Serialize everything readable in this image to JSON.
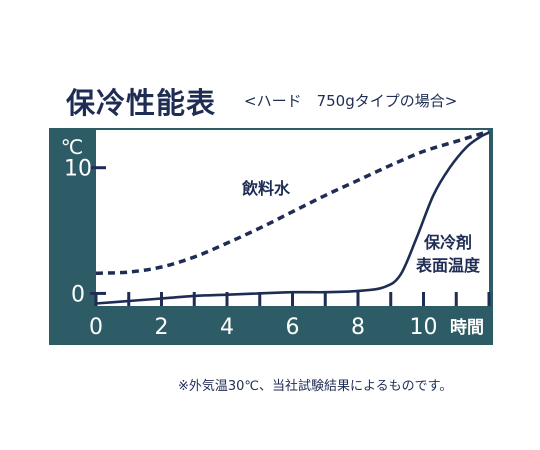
{
  "header": {
    "title": "保冷性能表",
    "subtitle": "<ハード　750gタイプの場合>"
  },
  "footnote": "※外気温30℃、当社試験結果によるものです。",
  "chart_data": {
    "type": "line",
    "ylabel": "℃",
    "xlabel": "時間",
    "x_ticks": [
      0,
      2,
      4,
      6,
      8,
      10
    ],
    "y_ticks": [
      0,
      10
    ],
    "xlim": [
      0,
      12
    ],
    "ylim": [
      -1,
      13
    ],
    "grid": false,
    "series": [
      {
        "name": "飲料水",
        "style": "dashed",
        "color": "#1f2d55",
        "points": [
          [
            0,
            1.6
          ],
          [
            1,
            1.7
          ],
          [
            2,
            2.1
          ],
          [
            3,
            2.9
          ],
          [
            4,
            4.0
          ],
          [
            5,
            5.2
          ],
          [
            6,
            6.5
          ],
          [
            7,
            7.8
          ],
          [
            8,
            9.0
          ],
          [
            9,
            10.2
          ],
          [
            10,
            11.3
          ],
          [
            11,
            12.1
          ],
          [
            12,
            12.9
          ]
        ]
      },
      {
        "name": "保冷剤\n表面温度",
        "style": "solid",
        "color": "#1f2d55",
        "points": [
          [
            0,
            -0.8
          ],
          [
            1,
            -0.6
          ],
          [
            2,
            -0.4
          ],
          [
            3,
            -0.2
          ],
          [
            4,
            -0.1
          ],
          [
            5,
            0.0
          ],
          [
            6,
            0.1
          ],
          [
            7,
            0.1
          ],
          [
            8,
            0.2
          ],
          [
            8.8,
            0.5
          ],
          [
            9.3,
            1.5
          ],
          [
            9.8,
            4.5
          ],
          [
            10.3,
            7.8
          ],
          [
            10.8,
            10.0
          ],
          [
            11.3,
            11.6
          ],
          [
            11.7,
            12.4
          ],
          [
            12,
            12.8
          ]
        ]
      }
    ],
    "colors": {
      "frame": "#2e5c66",
      "text": "#ffffff",
      "line": "#1f2d55"
    }
  }
}
